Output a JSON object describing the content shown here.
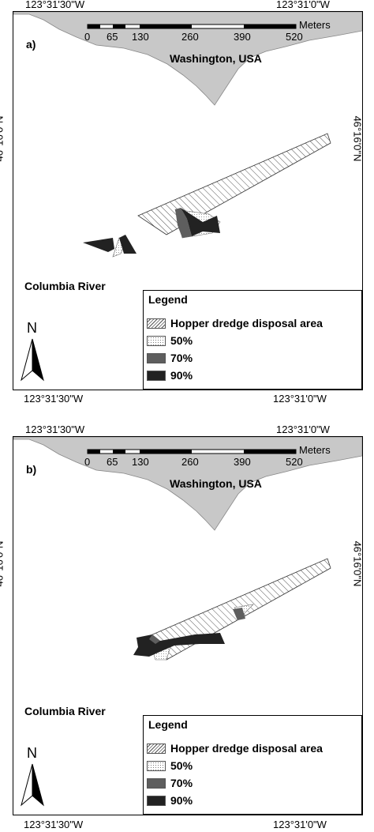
{
  "coordinates": {
    "lon_left": "123°31'30\"W",
    "lon_right": "123°31'0\"W",
    "lat": "46°16'0\"N"
  },
  "scale_bar": {
    "unit": "Meters",
    "ticks": [
      "0",
      "65",
      "130",
      "260",
      "390",
      "520"
    ]
  },
  "labels": {
    "state": "Washington, USA",
    "river": "Columbia River",
    "north": "N"
  },
  "legend": {
    "title": "Legend",
    "items": [
      {
        "label": "Hopper dredge disposal area",
        "pattern": "diagonal-hatch"
      },
      {
        "label": "50%",
        "pattern": "stipple"
      },
      {
        "label": "70%",
        "color": "#5e5e5e"
      },
      {
        "label": "90%",
        "color": "#222222"
      }
    ]
  },
  "panels": [
    {
      "letter": "a)"
    },
    {
      "letter": "b)"
    }
  ],
  "colors": {
    "land": "#c8c8c8",
    "contour_70": "#5e5e5e",
    "contour_90": "#222222"
  }
}
